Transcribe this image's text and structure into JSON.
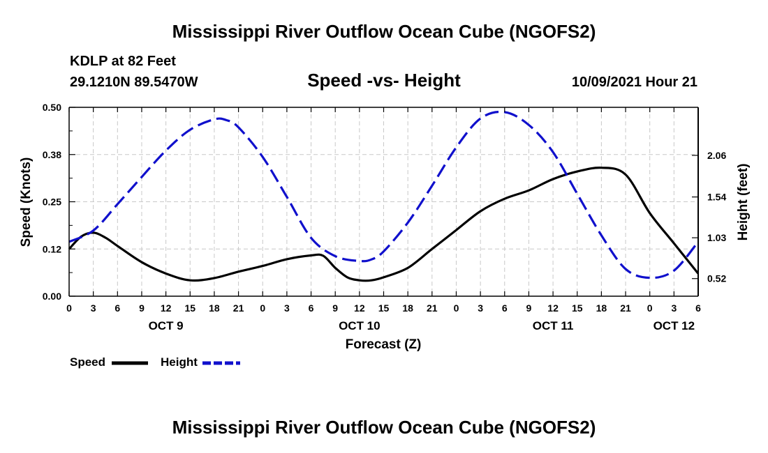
{
  "page": {
    "title_top": "Mississippi River Outflow Ocean Cube (NGOFS2)",
    "title_bottom": "Mississippi River Outflow Ocean Cube (NGOFS2)",
    "station": "KDLP at 82 Feet",
    "coords": "29.1210N  89.5470W",
    "date": "10/09/2021 Hour 21"
  },
  "chart_data": {
    "type": "line",
    "title": "Speed -vs- Height",
    "xlabel": "Forecast (Z)",
    "ylabel": "Speed (Knots)",
    "y2label": "Height (feet)",
    "xlim": [
      0,
      78
    ],
    "ylim": [
      0,
      0.5
    ],
    "y2lim": [
      0.3,
      2.66
    ],
    "x_ticks": [
      0,
      3,
      6,
      9,
      12,
      15,
      18,
      21,
      24,
      27,
      30,
      33,
      36,
      39,
      42,
      45,
      48,
      51,
      54,
      57,
      60,
      63,
      66,
      69,
      72,
      75,
      78
    ],
    "x_tick_labels": [
      "0",
      "3",
      "6",
      "9",
      "12",
      "15",
      "18",
      "21",
      "0",
      "3",
      "6",
      "9",
      "12",
      "15",
      "18",
      "21",
      "0",
      "3",
      "6",
      "9",
      "12",
      "15",
      "18",
      "21",
      "0",
      "3",
      "6"
    ],
    "day_labels": [
      {
        "x": 12,
        "label": "OCT 9"
      },
      {
        "x": 36,
        "label": "OCT 10"
      },
      {
        "x": 60,
        "label": "OCT 11"
      },
      {
        "x": 75,
        "label": "OCT 12"
      }
    ],
    "y_ticks": [
      0,
      0.125,
      0.25,
      0.375,
      0.5
    ],
    "y_tick_labels": [
      "0.00",
      "0.12",
      "0.25",
      "0.38",
      "0.50"
    ],
    "y2_ticks": [
      0.52,
      1.03,
      1.54,
      2.06
    ],
    "y2_tick_labels": [
      "0.52",
      "1.03",
      "1.54",
      "2.06"
    ],
    "grid": true,
    "legend": {
      "position": "bottom-left"
    },
    "series": [
      {
        "name": "Speed",
        "axis": "left",
        "color": "#000000",
        "dash": "solid",
        "x": [
          0,
          1.5,
          3,
          4.5,
          6,
          9,
          12,
          15,
          18,
          21,
          24,
          27,
          30,
          31.5,
          33,
          34.5,
          36,
          37.5,
          39,
          42,
          45,
          48,
          51,
          54,
          57,
          60,
          63,
          66,
          69,
          72,
          75,
          78
        ],
        "y": [
          0.125,
          0.158,
          0.168,
          0.155,
          0.133,
          0.09,
          0.06,
          0.042,
          0.048,
          0.065,
          0.08,
          0.098,
          0.108,
          0.107,
          0.075,
          0.05,
          0.042,
          0.042,
          0.05,
          0.075,
          0.125,
          0.175,
          0.225,
          0.258,
          0.28,
          0.31,
          0.33,
          0.34,
          0.322,
          0.22,
          0.14,
          0.06
        ]
      },
      {
        "name": "Height",
        "axis": "right",
        "color": "#1010cc",
        "dash": "dashed",
        "x": [
          0,
          3,
          6,
          9,
          12,
          15,
          18,
          19.5,
          21,
          24,
          27,
          30,
          33,
          36,
          37.5,
          39,
          42,
          45,
          48,
          51,
          54,
          57,
          60,
          63,
          66,
          69,
          72,
          75,
          78
        ],
        "y": [
          0.98,
          1.12,
          1.45,
          1.79,
          2.12,
          2.38,
          2.51,
          2.5,
          2.41,
          2.04,
          1.54,
          1.03,
          0.8,
          0.74,
          0.76,
          0.86,
          1.22,
          1.68,
          2.16,
          2.52,
          2.6,
          2.44,
          2.1,
          1.58,
          1.06,
          0.64,
          0.53,
          0.62,
          0.98
        ]
      }
    ]
  }
}
